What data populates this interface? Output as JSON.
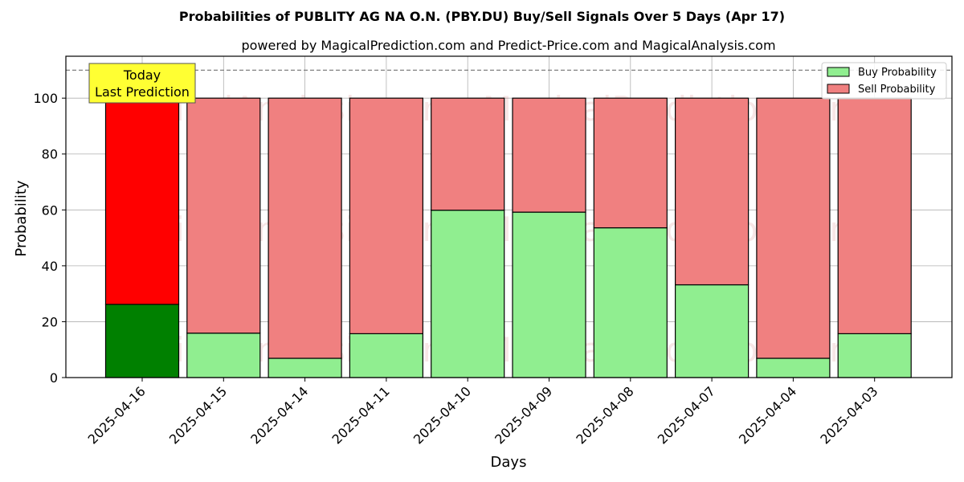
{
  "chart_data": {
    "type": "bar",
    "stacked": true,
    "title": "Probabilities of PUBLITY AG NA O.N. (PBY.DU) Buy/Sell Signals Over 5 Days (Apr 17)",
    "subtitle": "powered by MagicalPrediction.com and Predict-Price.com and MagicalAnalysis.com",
    "xlabel": "Days",
    "ylabel": "Probability",
    "ylim": [
      0,
      115
    ],
    "yticks": [
      0,
      20,
      40,
      60,
      80,
      100
    ],
    "grid": true,
    "legend_position": "top-right",
    "reference_line": 110,
    "categories": [
      "2025-04-16",
      "2025-04-15",
      "2025-04-14",
      "2025-04-11",
      "2025-04-10",
      "2025-04-09",
      "2025-04-08",
      "2025-04-07",
      "2025-04-04",
      "2025-04-03"
    ],
    "series": [
      {
        "name": "Buy Probability",
        "values": [
          26.2,
          15.9,
          6.9,
          15.7,
          59.9,
          59.2,
          53.6,
          33.2,
          6.9,
          15.7
        ]
      },
      {
        "name": "Sell Probability",
        "values": [
          73.8,
          84.1,
          93.1,
          84.3,
          40.1,
          40.8,
          46.4,
          66.8,
          93.1,
          84.3
        ]
      }
    ],
    "highlight": {
      "index": 0,
      "label_line1": "Today",
      "label_line2": "Last Prediction"
    },
    "watermarks": [
      "MagicalAnalysis.com",
      "MagicalPrediction.com"
    ],
    "colors": {
      "buy": "#90ee90",
      "sell": "#f08080",
      "buy_highlight": "#008000",
      "sell_highlight": "#ff0000",
      "annotation_bg": "#ffff33",
      "grid": "#b0b0b0"
    }
  }
}
